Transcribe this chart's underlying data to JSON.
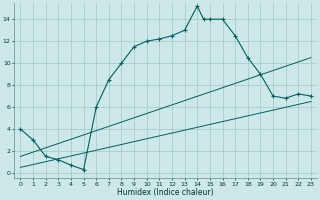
{
  "xlabel": "Humidex (Indice chaleur)",
  "bg_color": "#cce8e8",
  "grid_color": "#aacccc",
  "line_color": "#006060",
  "xlim": [
    -0.5,
    23.5
  ],
  "ylim": [
    -0.5,
    15.5
  ],
  "curve1_x": [
    0,
    1,
    2,
    3,
    4,
    5,
    6,
    7,
    8,
    9,
    10,
    11,
    12,
    13,
    14,
    14.5,
    15,
    16,
    17,
    18,
    19,
    20,
    21,
    22,
    23
  ],
  "curve1_y": [
    4.0,
    3.0,
    1.5,
    1.2,
    0.7,
    0.3,
    6.0,
    8.5,
    10.0,
    11.5,
    12.0,
    12.2,
    12.5,
    13.0,
    15.2,
    14.0,
    14.0,
    14.0,
    12.5,
    10.5,
    9.0,
    7.0,
    6.8,
    7.2,
    7.0
  ],
  "line1_x": [
    0,
    23
  ],
  "line1_y": [
    1.5,
    10.5
  ],
  "line2_x": [
    0,
    23
  ],
  "line2_y": [
    0.5,
    6.5
  ],
  "xticks": [
    0,
    1,
    2,
    3,
    4,
    5,
    6,
    7,
    8,
    9,
    10,
    11,
    12,
    13,
    14,
    15,
    16,
    17,
    18,
    19,
    20,
    21,
    22,
    23
  ],
  "yticks": [
    0,
    2,
    4,
    6,
    8,
    10,
    12,
    14
  ]
}
